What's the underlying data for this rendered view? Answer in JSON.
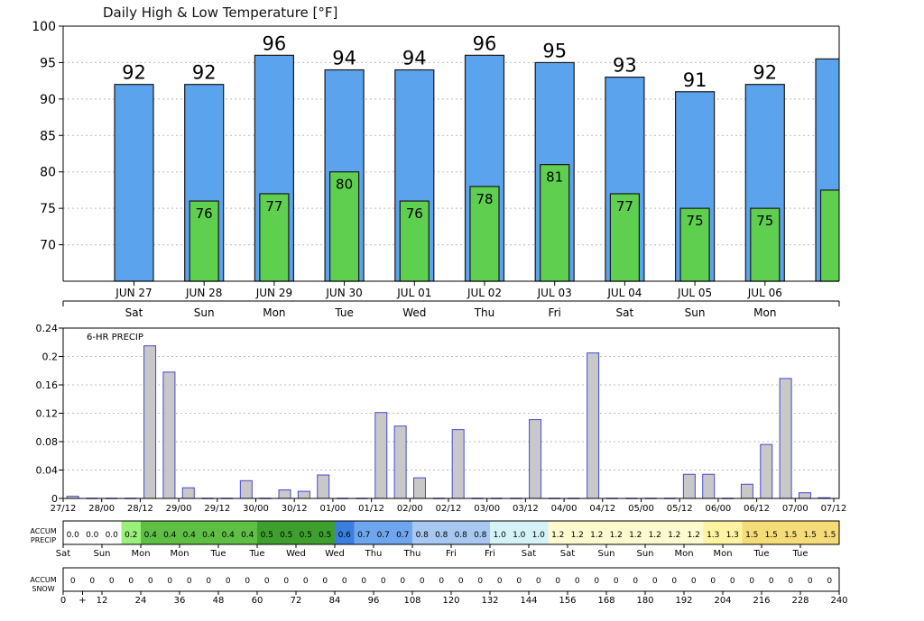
{
  "temp_chart": {
    "title": "Daily High & Low Temperature [°F]",
    "ylim": [
      65,
      100
    ],
    "yticks": [
      70,
      75,
      80,
      85,
      90,
      95,
      100
    ]
  },
  "precip_chart": {
    "title": "6-HR PRECIP",
    "ylim": [
      0,
      0.24
    ],
    "yticks": [
      "0",
      "0.04",
      "0.08",
      "0.12",
      "0.16",
      "0.2",
      "0.24"
    ],
    "xticks": [
      "27/12",
      "28/00",
      "28/12",
      "29/00",
      "29/12",
      "30/00",
      "30/12",
      "01/00",
      "01/12",
      "02/00",
      "02/12",
      "03/00",
      "03/12",
      "04/00",
      "04/12",
      "05/00",
      "05/12",
      "06/00",
      "06/12",
      "07/00",
      "07/12"
    ]
  },
  "accum_precip": {
    "label_line1": "ACCUM",
    "label_line2": "PRECIP",
    "values": [
      "0.0",
      "0.0",
      "0.0",
      "0.2",
      "0.4",
      "0.4",
      "0.4",
      "0.4",
      "0.4",
      "0.4",
      "0.5",
      "0.5",
      "0.5",
      "0.5",
      "0.6",
      "0.7",
      "0.7",
      "0.7",
      "0.8",
      "0.8",
      "0.8",
      "0.8",
      "1.0",
      "1.0",
      "1.0",
      "1.2",
      "1.2",
      "1.2",
      "1.2",
      "1.2",
      "1.2",
      "1.2",
      "1.2",
      "1.3",
      "1.3",
      "1.5",
      "1.5",
      "1.5",
      "1.5",
      "1.5"
    ],
    "day_labels": [
      "Sat",
      "Sun",
      "Mon",
      "Mon",
      "Tue",
      "Tue",
      "Wed",
      "Wed",
      "Thu",
      "Thu",
      "Fri",
      "Fri",
      "Sat",
      "Sat",
      "Sun",
      "Sun",
      "Mon",
      "Mon",
      "Tue",
      "Tue"
    ]
  },
  "accum_snow": {
    "label_line1": "ACCUM",
    "label_line2": "SNOW",
    "values": [
      "0",
      "0",
      "0",
      "0",
      "0",
      "0",
      "0",
      "0",
      "0",
      "0",
      "0",
      "0",
      "0",
      "0",
      "0",
      "0",
      "0",
      "0",
      "0",
      "0",
      "0",
      "0",
      "0",
      "0",
      "0",
      "0",
      "0",
      "0",
      "0",
      "0",
      "0",
      "0",
      "0",
      "0",
      "0",
      "0",
      "0",
      "0",
      "0",
      "0"
    ],
    "hour_labels": [
      "0",
      "+",
      "12",
      "24",
      "36",
      "48",
      "60",
      "72",
      "84",
      "96",
      "108",
      "120",
      "132",
      "144",
      "156",
      "168",
      "180",
      "192",
      "204",
      "216",
      "228",
      "240"
    ]
  },
  "colors": {
    "high": "#5ba3ec",
    "low": "#5fcf50",
    "precip_bar": "#c8c8c8",
    "precip_edge": "#4848d0",
    "grid": "#bbbbbb"
  },
  "chart_data": [
    {
      "type": "bar",
      "title": "Daily High & Low Temperature [°F]",
      "categories": [
        "JUN 27",
        "JUN 28",
        "JUN 29",
        "JUN 30",
        "JUL 01",
        "JUL 02",
        "JUL 03",
        "JUL 04",
        "JUL 05",
        "JUL 06",
        ""
      ],
      "weekdays": [
        "Sat",
        "Sun",
        "Mon",
        "Tue",
        "Wed",
        "Thu",
        "Fri",
        "Sat",
        "Sun",
        "Mon",
        ""
      ],
      "series": [
        {
          "values": [
            92,
            92,
            96,
            94,
            94,
            96,
            95,
            93,
            91,
            92,
            95.5
          ],
          "labels": [
            "92",
            "92",
            "96",
            "94",
            "94",
            "96",
            "95",
            "93",
            "91",
            "92",
            ""
          ]
        },
        {
          "values": [
            null,
            76,
            77,
            80,
            76,
            78,
            81,
            77,
            75,
            75,
            77.5
          ],
          "labels": [
            "",
            "76",
            "77",
            "80",
            "76",
            "78",
            "81",
            "77",
            "75",
            "75",
            ""
          ]
        }
      ],
      "ylim": [
        65,
        100
      ]
    },
    {
      "type": "bar",
      "title": "6-HR PRECIP",
      "x_hours": [
        3,
        9,
        15,
        21,
        27,
        33,
        39,
        45,
        51,
        57,
        63,
        69,
        75,
        81,
        87,
        93,
        99,
        105,
        111,
        117,
        123,
        129,
        135,
        141,
        147,
        153,
        159,
        165,
        171,
        177,
        183,
        189,
        195,
        201,
        207,
        213,
        219,
        225,
        231,
        237
      ],
      "values": [
        0.003,
        0,
        0,
        0,
        0.215,
        0.178,
        0.015,
        0,
        0,
        0.025,
        0,
        0.012,
        0.01,
        0.033,
        0,
        0,
        0.121,
        0.102,
        0.029,
        0,
        0.097,
        0,
        0,
        0,
        0.111,
        0,
        0,
        0.205,
        0,
        0,
        0,
        0,
        0.034,
        0.034,
        0,
        0.02,
        0.076,
        0.169,
        0.008,
        0.001
      ],
      "ylim": [
        0,
        0.24
      ]
    }
  ]
}
